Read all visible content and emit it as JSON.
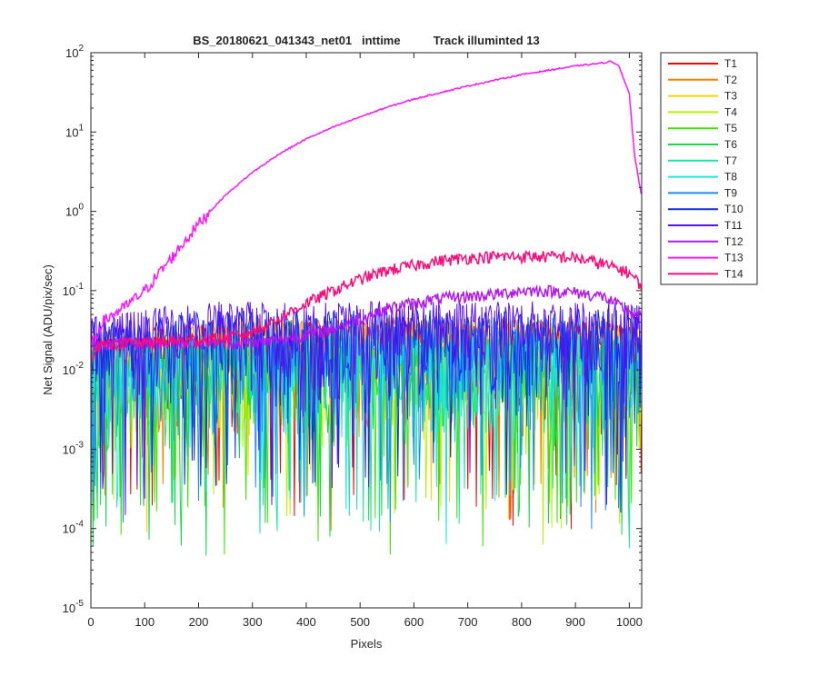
{
  "chart_data": {
    "type": "line",
    "title": "BS_20180621_041343_net01   inttime          Track illuminted 13",
    "xlabel": "Pixels",
    "ylabel": "Net Signal (ADU/pix/sec)",
    "xlim": [
      0,
      1023
    ],
    "ylim": [
      1e-05,
      100
    ],
    "yscale": "log",
    "x_ticks": [
      0,
      100,
      200,
      300,
      400,
      500,
      600,
      700,
      800,
      900,
      1000
    ],
    "y_ticks": [
      {
        "base": "10",
        "exp": "-5"
      },
      {
        "base": "10",
        "exp": "-4"
      },
      {
        "base": "10",
        "exp": "-3"
      },
      {
        "base": "10",
        "exp": "-2"
      },
      {
        "base": "10",
        "exp": "-1"
      },
      {
        "base": "10",
        "exp": "0"
      },
      {
        "base": "10",
        "exp": "1"
      },
      {
        "base": "10",
        "exp": "2"
      }
    ],
    "grid": false,
    "legend_position": "outside-top-right",
    "x_samples": [
      0,
      10,
      20,
      40,
      60,
      100,
      150,
      200,
      250,
      300,
      350,
      400,
      450,
      500,
      550,
      600,
      650,
      700,
      750,
      800,
      850,
      900,
      950,
      965,
      980,
      1000,
      1010,
      1023
    ],
    "series": [
      {
        "name": "T1",
        "color": "#ff0000",
        "noise_level": 0.018,
        "values": []
      },
      {
        "name": "T2",
        "color": "#ff7f00",
        "noise_level": 0.02,
        "values": []
      },
      {
        "name": "T3",
        "color": "#ffd400",
        "noise_level": 0.019,
        "values": []
      },
      {
        "name": "T4",
        "color": "#b8f200",
        "noise_level": 0.012,
        "values": []
      },
      {
        "name": "T5",
        "color": "#3de600",
        "noise_level": 0.011,
        "values": []
      },
      {
        "name": "T6",
        "color": "#14d94a",
        "noise_level": 0.011,
        "values": []
      },
      {
        "name": "T7",
        "color": "#18e6a8",
        "noise_level": 0.012,
        "values": []
      },
      {
        "name": "T8",
        "color": "#19e6e6",
        "noise_level": 0.014,
        "values": []
      },
      {
        "name": "T9",
        "color": "#1a8cff",
        "noise_level": 0.02,
        "values": []
      },
      {
        "name": "T10",
        "color": "#0d2fe6",
        "noise_level": 0.026,
        "values": []
      },
      {
        "name": "T11",
        "color": "#5a10f0",
        "noise_level": 0.032,
        "values": []
      },
      {
        "name": "T12",
        "color": "#b317f0",
        "noise_level": null,
        "values": [
          0.02,
          0.02,
          0.022,
          0.022,
          0.022,
          0.022,
          0.022,
          0.022,
          0.022,
          0.022,
          0.024,
          0.028,
          0.033,
          0.045,
          0.06,
          0.07,
          0.08,
          0.085,
          0.09,
          0.1,
          0.1,
          0.095,
          0.085,
          0.075,
          0.065,
          0.055,
          0.05,
          0.045
        ]
      },
      {
        "name": "T13",
        "color": "#ff14ff",
        "noise_level": null,
        "values": [
          0.02,
          0.025,
          0.04,
          0.05,
          0.06,
          0.1,
          0.26,
          0.7,
          1.6,
          3.1,
          5.3,
          8.2,
          11.5,
          15.5,
          20.5,
          26,
          31.5,
          38,
          45,
          53,
          60,
          68,
          74,
          78,
          70,
          30,
          5,
          1.5
        ]
      },
      {
        "name": "T14",
        "color": "#ff0a78",
        "noise_level": null,
        "values": [
          0.015,
          0.02,
          0.02,
          0.021,
          0.022,
          0.022,
          0.023,
          0.024,
          0.025,
          0.03,
          0.045,
          0.07,
          0.1,
          0.14,
          0.18,
          0.21,
          0.24,
          0.26,
          0.27,
          0.27,
          0.27,
          0.26,
          0.22,
          0.2,
          0.19,
          0.17,
          0.14,
          0.12
        ]
      }
    ],
    "note_noise": "T1–T11 are noisy traces around ~0.005–0.04 with deep downward spikes to ~1e-4; noise_level is the typical value."
  }
}
